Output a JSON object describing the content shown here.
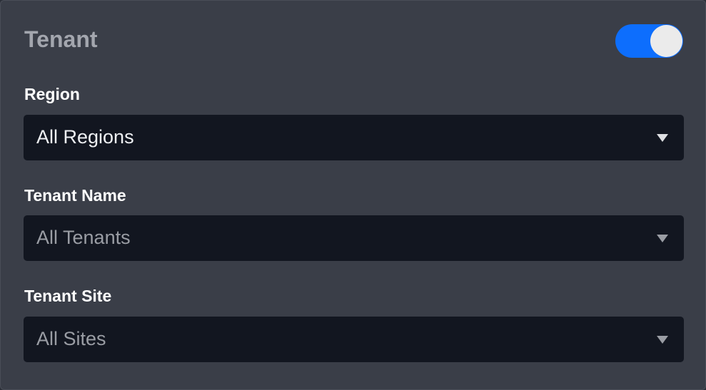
{
  "panel": {
    "title": "Tenant",
    "toggle": {
      "on": true,
      "color": "#0d6efd"
    },
    "fields": [
      {
        "label": "Region",
        "value": "All Regions",
        "enabled": true
      },
      {
        "label": "Tenant Name",
        "value": "All Tenants",
        "enabled": false
      },
      {
        "label": "Tenant Site",
        "value": "All Sites",
        "enabled": false
      }
    ]
  }
}
